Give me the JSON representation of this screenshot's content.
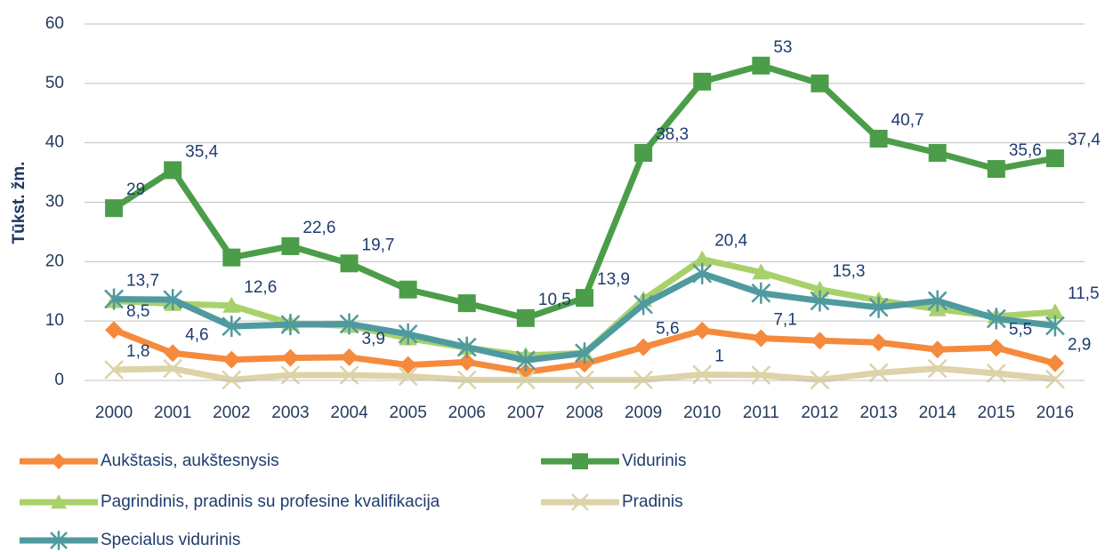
{
  "chart_data": {
    "type": "line",
    "y_label": "Tūkst. žm.",
    "categories": [
      "2000",
      "2001",
      "2002",
      "2003",
      "2004",
      "2005",
      "2006",
      "2007",
      "2008",
      "2009",
      "2010",
      "2011",
      "2012",
      "2013",
      "2014",
      "2015",
      "2016"
    ],
    "ylim": [
      0,
      60
    ],
    "yticks": [
      0,
      10,
      20,
      30,
      40,
      50,
      60
    ],
    "grid": true,
    "legend": "bottom",
    "series": [
      {
        "name": "Aukštasis, aukštesnysis",
        "color": "#f58a3c",
        "marker": "diamond",
        "values": [
          8.5,
          4.6,
          3.5,
          3.8,
          3.9,
          2.6,
          3.1,
          1.4,
          2.8,
          5.6,
          8.4,
          7.1,
          6.7,
          6.4,
          5.2,
          5.5,
          2.9
        ],
        "value_labels": [
          "8,5",
          "4,6",
          null,
          null,
          "3,9",
          null,
          null,
          null,
          null,
          "5,6",
          null,
          "7,1",
          null,
          null,
          null,
          "5,5",
          "2,9"
        ]
      },
      {
        "name": "Vidurinis",
        "color": "#4c9d49",
        "marker": "square",
        "values": [
          29,
          35.4,
          20.7,
          22.6,
          19.7,
          15.3,
          13.0,
          10.5,
          13.9,
          38.3,
          50.3,
          53,
          50.0,
          40.7,
          38.3,
          35.6,
          37.4
        ],
        "value_labels": [
          "29",
          "35,4",
          null,
          "22,6",
          "19,7",
          null,
          null,
          "10,5",
          "13,9",
          "38,3",
          null,
          "53",
          null,
          "40,7",
          null,
          "35,6",
          "37,4"
        ]
      },
      {
        "name": "Pagrindinis, pradinis su profesine kvalifikacija",
        "color": "#a9d16b",
        "marker": "triangle",
        "values": [
          13.4,
          12.9,
          12.6,
          9.6,
          9.2,
          7.1,
          5.5,
          4.2,
          4.6,
          13.6,
          20.4,
          18.2,
          15.3,
          13.5,
          12.0,
          10.8,
          11.5
        ],
        "value_labels": [
          null,
          null,
          "12,6",
          null,
          null,
          null,
          null,
          null,
          null,
          null,
          "20,4",
          null,
          "15,3",
          null,
          null,
          null,
          "11,5"
        ]
      },
      {
        "name": "Pradinis",
        "color": "#ddd3a8",
        "marker": "x",
        "values": [
          1.8,
          2.0,
          0.1,
          0.9,
          0.9,
          0.7,
          0.1,
          0.1,
          0.1,
          0.1,
          1,
          0.9,
          0.1,
          1.3,
          2.0,
          1.2,
          0.2
        ],
        "value_labels": [
          "1,8",
          null,
          null,
          null,
          null,
          null,
          null,
          null,
          null,
          null,
          "1",
          null,
          null,
          null,
          null,
          null,
          null
        ]
      },
      {
        "name": "Specialus vidurinis",
        "color": "#4f9a9f",
        "marker": "star",
        "values": [
          13.7,
          13.6,
          9.1,
          9.4,
          9.5,
          7.8,
          5.6,
          3.4,
          4.6,
          12.8,
          18.0,
          14.7,
          13.4,
          12.3,
          13.4,
          10.4,
          9.2
        ],
        "value_labels": [
          "13,7",
          null,
          null,
          null,
          null,
          null,
          null,
          null,
          null,
          null,
          null,
          null,
          null,
          null,
          null,
          null,
          null
        ]
      }
    ]
  }
}
